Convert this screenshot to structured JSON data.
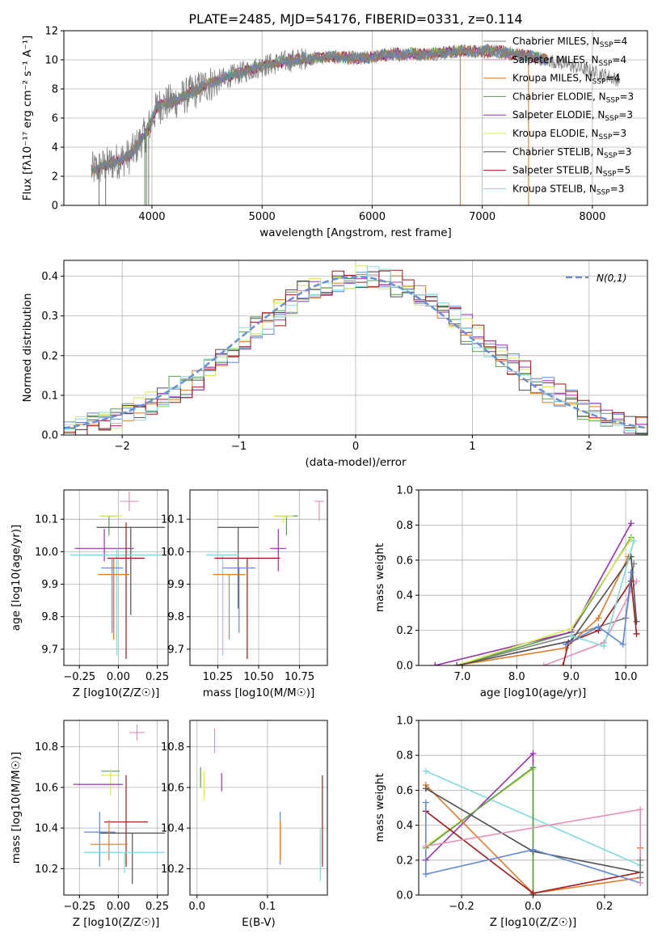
{
  "figure": {
    "title": "PLATE=2485, MJD=54176, FIBERID=0331, z=0.114"
  },
  "colors": {
    "gray": "#808080",
    "orange": "#e07b2a",
    "green": "#5aa050",
    "purple": "#9b30b0",
    "yellow": "#d8e858",
    "darkgray": "#505050",
    "darkred": "#a01818",
    "cyan": "#80dcdc",
    "blue": "#6088d8",
    "pink": "#e890b8",
    "lime": "#b8e878",
    "dashed": "#6a8fd8"
  },
  "chart_data": [
    {
      "id": "spectrum",
      "type": "line",
      "title": "PLATE=2485, MJD=54176, FIBERID=0331, z=0.114",
      "xlabel": "wavelength [Angstrom, rest frame]",
      "ylabel": "Flux [fλ10⁻¹⁷ erg cm⁻² s⁻¹ A⁻¹]",
      "xlim": [
        3200,
        8500
      ],
      "ylim": [
        0,
        12
      ],
      "xticks": [
        4000,
        5000,
        6000,
        7000,
        8000
      ],
      "yticks": [
        0,
        2,
        4,
        6,
        8,
        10,
        12
      ],
      "legend_position": "top-right",
      "continuum": {
        "x": [
          3450,
          3600,
          3800,
          3950,
          4050,
          4250,
          4500,
          4800,
          5000,
          5300,
          5600,
          5900,
          6200,
          6500,
          6800,
          7100,
          7400,
          7700,
          8000,
          8250
        ],
        "y": [
          2.4,
          2.8,
          3.4,
          5.0,
          6.8,
          7.3,
          8.3,
          9.1,
          9.6,
          10.0,
          10.2,
          10.1,
          10.4,
          10.4,
          10.6,
          10.6,
          10.3,
          9.8,
          9.2,
          8.6
        ]
      },
      "spikes": [
        {
          "x": 3950,
          "color": "green"
        },
        {
          "x": 6800,
          "color": "orange"
        },
        {
          "x": 7420,
          "color": "orange"
        }
      ],
      "legend": [
        {
          "label": "Chabrier MILES, N_SSP=4",
          "color": "gray"
        },
        {
          "label": "Salpeter MILES, N_SSP=4",
          "color": "pink"
        },
        {
          "label": "Kroupa MILES, N_SSP=4",
          "color": "orange"
        },
        {
          "label": "Chabrier ELODIE, N_SSP=3",
          "color": "green"
        },
        {
          "label": "Salpeter ELODIE, N_SSP=3",
          "color": "purple"
        },
        {
          "label": "Kroupa ELODIE, N_SSP=3",
          "color": "yellow"
        },
        {
          "label": "Chabrier STELIB, N_SSP=3",
          "color": "darkgray"
        },
        {
          "label": "Salpeter STELIB, N_SSP=5",
          "color": "darkred"
        },
        {
          "label": "Kroupa STELIB, N_SSP=3",
          "color": "cyan"
        }
      ]
    },
    {
      "id": "residuals",
      "type": "histogram",
      "xlabel": "(data-model)/error",
      "ylabel": "Normed distribution",
      "xlim": [
        -2.5,
        2.5
      ],
      "ylim": [
        0,
        0.44
      ],
      "xticks": [
        -2,
        -1,
        0,
        1,
        2
      ],
      "yticks": [
        0.0,
        0.1,
        0.2,
        0.3,
        0.4
      ],
      "bin_width": 0.1,
      "series_colors": [
        "blue",
        "orange",
        "green",
        "purple",
        "yellow",
        "darkgray",
        "darkred",
        "cyan"
      ],
      "reference": {
        "label": "N(0,1)",
        "color": "dashed"
      },
      "legend_position": "top-right"
    },
    {
      "id": "age-vs-z",
      "type": "errorbar",
      "xlabel": "Z [log10(Z/Z☉)]",
      "ylabel": "age  [log10(age/yr)]",
      "xlim": [
        -0.35,
        0.32
      ],
      "ylim": [
        9.65,
        10.19
      ],
      "xticks": [
        -0.25,
        0.0,
        0.25
      ],
      "yticks": [
        9.7,
        9.8,
        9.9,
        10.0,
        10.1
      ],
      "points": [
        {
          "x": -0.06,
          "xerr": 0.06,
          "y": 10.11,
          "yerr_lo": 0.06,
          "yerr_hi": 0.0,
          "color": "green"
        },
        {
          "x": 0.07,
          "xerr": 0.06,
          "y": 10.155,
          "yerr_lo": 0.03,
          "yerr_hi": 0.03,
          "color": "pink"
        },
        {
          "x": -0.05,
          "xerr": 0.07,
          "y": 10.11,
          "yerr_lo": 0.0,
          "yerr_hi": 0.0,
          "color": "yellow"
        },
        {
          "x": 0.08,
          "xerr": 0.22,
          "y": 10.075,
          "yerr_lo": 0.27,
          "yerr_hi": 0.0,
          "color": "darkgray"
        },
        {
          "x": -0.09,
          "xerr": 0.19,
          "y": 10.01,
          "yerr_lo": 0.04,
          "yerr_hi": 0.06,
          "color": "purple"
        },
        {
          "x": -0.01,
          "xerr": 0.3,
          "y": 9.99,
          "yerr_lo": 0.31,
          "yerr_hi": 0.02,
          "color": "cyan"
        },
        {
          "x": 0.05,
          "xerr": 0.12,
          "y": 9.98,
          "yerr_lo": 0.31,
          "yerr_hi": 0.11,
          "color": "darkred"
        },
        {
          "x": -0.04,
          "xerr": 0.07,
          "y": 9.95,
          "yerr_lo": 0.2,
          "yerr_hi": 0.03,
          "color": "blue"
        },
        {
          "x": -0.03,
          "xerr": 0.1,
          "y": 9.93,
          "yerr_lo": 0.2,
          "yerr_hi": 0.05,
          "color": "orange"
        }
      ]
    },
    {
      "id": "age-vs-mass",
      "type": "errorbar",
      "xlabel": "mass [log10(M/M☉)]",
      "ylabel": "",
      "xlim": [
        10.08,
        10.92
      ],
      "ylim": [
        9.65,
        10.19
      ],
      "xticks": [
        10.25,
        10.5,
        10.75
      ],
      "yticks": [
        9.7,
        9.8,
        9.9,
        10.0,
        10.1
      ],
      "points": [
        {
          "x": 10.67,
          "xerr": 0.07,
          "y": 10.11,
          "yerr_lo": 0.06,
          "yerr_hi": 0.0,
          "color": "green"
        },
        {
          "x": 10.87,
          "xerr": 0.03,
          "y": 10.155,
          "yerr_lo": 0.06,
          "yerr_hi": 0.0,
          "color": "pink"
        },
        {
          "x": 10.65,
          "xerr": 0.06,
          "y": 10.11,
          "yerr_lo": 0.02,
          "yerr_hi": 0.0,
          "color": "yellow"
        },
        {
          "x": 10.375,
          "xerr": 0.125,
          "y": 10.075,
          "yerr_lo": 0.25,
          "yerr_hi": 0.0,
          "color": "darkgray"
        },
        {
          "x": 10.62,
          "xerr": 0.05,
          "y": 10.01,
          "yerr_lo": 0.07,
          "yerr_hi": 0.06,
          "color": "purple"
        },
        {
          "x": 10.28,
          "xerr": 0.1,
          "y": 9.99,
          "yerr_lo": 0.31,
          "yerr_hi": 0.0,
          "color": "cyan"
        },
        {
          "x": 10.43,
          "xerr": 0.2,
          "y": 9.98,
          "yerr_lo": 0.31,
          "yerr_hi": 0.0,
          "color": "darkred"
        },
        {
          "x": 10.38,
          "xerr": 0.1,
          "y": 9.95,
          "yerr_lo": 0.2,
          "yerr_hi": 0.0,
          "color": "blue"
        },
        {
          "x": 10.32,
          "xerr": 0.1,
          "y": 9.93,
          "yerr_lo": 0.2,
          "yerr_hi": 0.0,
          "color": "orange"
        }
      ]
    },
    {
      "id": "weight-vs-age",
      "type": "line",
      "xlabel": "age  [log10(age/yr)]",
      "ylabel": "mass weight",
      "xlim": [
        6.2,
        10.4
      ],
      "ylim": [
        0,
        1.0
      ],
      "xticks": [
        7,
        8,
        9,
        10
      ],
      "yticks": [
        0.0,
        0.2,
        0.4,
        0.6,
        0.8,
        1.0
      ],
      "series": [
        {
          "color": "gray",
          "x": [
            6.9,
            9.0,
            10.0,
            10.15
          ],
          "y": [
            0.0,
            0.17,
            0.27,
            0.58
          ]
        },
        {
          "color": "pink",
          "x": [
            8.5,
            9.6,
            10.2
          ],
          "y": [
            0.0,
            0.13,
            0.48
          ]
        },
        {
          "color": "orange",
          "x": [
            6.9,
            8.9,
            9.5,
            10.05
          ],
          "y": [
            0.0,
            0.1,
            0.27,
            0.62
          ]
        },
        {
          "color": "green",
          "x": [
            6.9,
            9.0,
            10.1
          ],
          "y": [
            0.0,
            0.19,
            0.73
          ]
        },
        {
          "color": "purple",
          "x": [
            6.5,
            9.0,
            10.1
          ],
          "y": [
            0.0,
            0.19,
            0.81
          ]
        },
        {
          "color": "yellow",
          "x": [
            6.9,
            9.0,
            10.1
          ],
          "y": [
            0.0,
            0.21,
            0.72
          ]
        },
        {
          "color": "darkgray",
          "x": [
            6.9,
            9.0,
            10.1,
            10.2
          ],
          "y": [
            0.0,
            0.14,
            0.62,
            0.25
          ]
        },
        {
          "color": "darkred",
          "x": [
            8.85,
            8.95,
            9.5,
            10.1,
            10.2
          ],
          "y": [
            0.0,
            0.13,
            0.2,
            0.48,
            0.18
          ]
        },
        {
          "color": "cyan",
          "x": [
            9.0,
            9.6,
            10.15
          ],
          "y": [
            0.17,
            0.11,
            0.71
          ]
        },
        {
          "color": "blue",
          "x": [
            8.9,
            9.5,
            9.95,
            10.1
          ],
          "y": [
            0.12,
            0.22,
            0.12,
            0.53
          ]
        }
      ]
    },
    {
      "id": "mass-vs-z",
      "type": "errorbar",
      "xlabel": "Z [log10(Z/Z☉)]",
      "ylabel": "mass [log10(M/M☉)]",
      "xlim": [
        -0.35,
        0.32
      ],
      "ylim": [
        10.07,
        10.93
      ],
      "xticks": [
        -0.25,
        0.0,
        0.25
      ],
      "yticks": [
        10.2,
        10.4,
        10.6,
        10.8
      ],
      "points": [
        {
          "x": 0.12,
          "xerr": 0.05,
          "y": 10.87,
          "yerr_lo": 0.04,
          "yerr_hi": 0.04,
          "color": "pink"
        },
        {
          "x": -0.05,
          "xerr": 0.06,
          "y": 10.68,
          "yerr_lo": 0.0,
          "yerr_hi": 0.0,
          "color": "green"
        },
        {
          "x": -0.05,
          "xerr": 0.06,
          "y": 10.66,
          "yerr_lo": 0.1,
          "yerr_hi": 0.03,
          "color": "yellow"
        },
        {
          "x": -0.13,
          "xerr": 0.16,
          "y": 10.615,
          "yerr_lo": 0.0,
          "yerr_hi": 0.0,
          "color": "purple"
        },
        {
          "x": 0.05,
          "xerr": 0.14,
          "y": 10.43,
          "yerr_lo": 0.22,
          "yerr_hi": 0.23,
          "color": "darkred"
        },
        {
          "x": -0.12,
          "xerr": 0.1,
          "y": 10.38,
          "yerr_lo": 0.17,
          "yerr_hi": 0.1,
          "color": "blue"
        },
        {
          "x": 0.09,
          "xerr": 0.21,
          "y": 10.375,
          "yerr_lo": 0.25,
          "yerr_hi": 0.0,
          "color": "darkgray"
        },
        {
          "x": -0.06,
          "xerr": 0.12,
          "y": 10.32,
          "yerr_lo": 0.08,
          "yerr_hi": 0.12,
          "color": "orange"
        },
        {
          "x": 0.04,
          "xerr": 0.26,
          "y": 10.28,
          "yerr_lo": 0.1,
          "yerr_hi": 0.0,
          "color": "cyan"
        }
      ]
    },
    {
      "id": "mass-vs-ebv",
      "type": "errorbar",
      "xlabel": "E(B-V)",
      "ylabel": "",
      "xlim": [
        -0.01,
        0.185
      ],
      "ylim": [
        10.07,
        10.93
      ],
      "xticks": [
        0.0,
        0.1
      ],
      "yticks": [
        10.2,
        10.4,
        10.6,
        10.8
      ],
      "points": [
        {
          "x": 0.025,
          "y": 10.83,
          "yerr_lo": 0.06,
          "yerr_hi": 0.06,
          "color": "pink"
        },
        {
          "x": 0.005,
          "y": 10.64,
          "yerr_lo": 0.04,
          "yerr_hi": 0.06,
          "color": "green"
        },
        {
          "x": 0.01,
          "y": 10.62,
          "yerr_lo": 0.08,
          "yerr_hi": 0.06,
          "color": "yellow"
        },
        {
          "x": 0.035,
          "y": 10.62,
          "yerr_lo": 0.04,
          "yerr_hi": 0.05,
          "color": "purple"
        },
        {
          "x": 0.178,
          "y": 10.44,
          "yerr_lo": 0.23,
          "yerr_hi": 0.22,
          "color": "darkred"
        },
        {
          "x": 0.118,
          "y": 10.35,
          "yerr_lo": 0.13,
          "yerr_hi": 0.13,
          "color": "blue"
        },
        {
          "x": 0.118,
          "y": 10.34,
          "yerr_lo": 0.1,
          "yerr_hi": 0.1,
          "color": "orange"
        },
        {
          "x": 0.175,
          "y": 10.28,
          "yerr_lo": 0.14,
          "yerr_hi": 0.12,
          "color": "cyan"
        }
      ]
    },
    {
      "id": "weight-vs-z",
      "type": "line",
      "xlabel": "Z [log10(Z/Z☉)]",
      "ylabel": "mass weight",
      "xlim": [
        -0.32,
        0.32
      ],
      "ylim": [
        0,
        1.0
      ],
      "xticks": [
        -0.2,
        0.0,
        0.2
      ],
      "yticks": [
        0.0,
        0.2,
        0.4,
        0.6,
        0.8,
        1.0
      ],
      "series": [
        {
          "color": "cyan",
          "x": [
            -0.3,
            0.3
          ],
          "y": [
            0.71,
            0.17
          ]
        },
        {
          "color": "purple",
          "x": [
            -0.3,
            0.0,
            0.0
          ],
          "y": [
            0.2,
            0.81,
            0.0
          ]
        },
        {
          "color": "yellow",
          "x": [
            -0.3,
            0.0,
            0.0
          ],
          "y": [
            0.28,
            0.72,
            0.0
          ]
        },
        {
          "color": "green",
          "x": [
            -0.3,
            0.0,
            0.0
          ],
          "y": [
            0.27,
            0.73,
            0.0
          ]
        },
        {
          "color": "orange",
          "x": [
            -0.3,
            0.0,
            0.3,
            0.3
          ],
          "y": [
            0.63,
            0.01,
            0.1,
            0.27
          ]
        },
        {
          "color": "darkred",
          "x": [
            -0.3,
            0.0,
            0.3
          ],
          "y": [
            0.48,
            0.01,
            0.13
          ]
        },
        {
          "color": "darkgray",
          "x": [
            -0.3,
            0.0,
            0.3
          ],
          "y": [
            0.61,
            0.25,
            0.13
          ]
        },
        {
          "color": "blue",
          "x": [
            -0.3,
            -0.3,
            0.0,
            0.3
          ],
          "y": [
            0.53,
            0.12,
            0.26,
            0.07
          ]
        },
        {
          "color": "pink",
          "x": [
            -0.3,
            0.3,
            0.3
          ],
          "y": [
            0.28,
            0.49,
            0.07
          ]
        },
        {
          "color": "gray",
          "x": [
            0.3,
            0.3
          ],
          "y": [
            0.2,
            0.1
          ]
        }
      ]
    }
  ]
}
